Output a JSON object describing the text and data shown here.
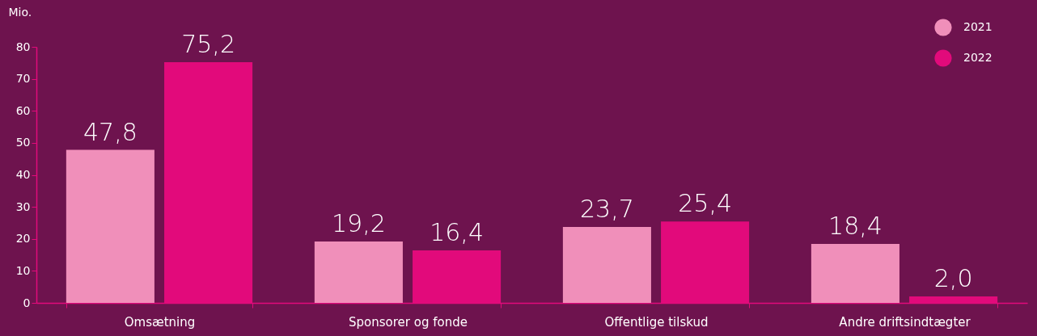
{
  "chart_data": {
    "type": "bar",
    "ylabel": "Mio.",
    "categories": [
      "Omsætning",
      "Sponsorer og fonde",
      "Offentlige tilskud",
      "Andre driftsindtægter"
    ],
    "series": [
      {
        "name": "2021",
        "color": "#f08fba",
        "values": [
          47.8,
          19.2,
          23.7,
          18.4
        ],
        "value_labels": [
          "47,8",
          "19,2",
          "23,7",
          "18,4"
        ]
      },
      {
        "name": "2022",
        "color": "#e20a7b",
        "values": [
          75.2,
          16.4,
          25.4,
          2.0
        ],
        "value_labels": [
          "75,2",
          "16,4",
          "25,4",
          "2,0"
        ]
      }
    ],
    "ylim": [
      0,
      80
    ],
    "yticks": [
      0,
      10,
      20,
      30,
      40,
      50,
      60,
      70,
      80
    ],
    "grid": false,
    "legend": "top right"
  }
}
